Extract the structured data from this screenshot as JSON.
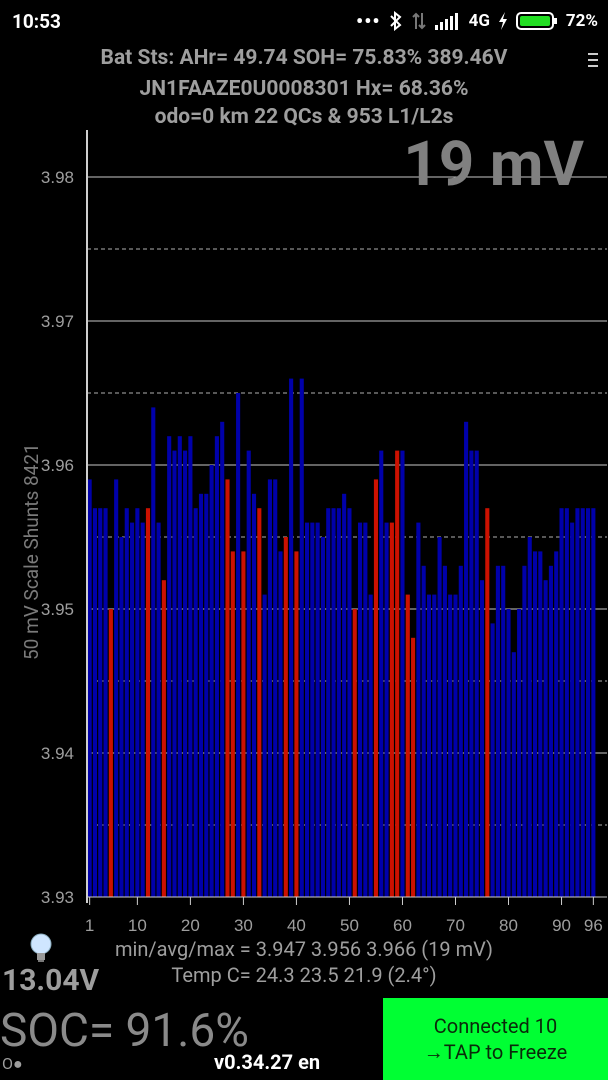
{
  "status_bar": {
    "time": "10:53",
    "network": "4G",
    "battery_percent": "72%"
  },
  "header": {
    "line1": "Bat Sts: AHr= 49.74 SOH= 75.83% 389.46V",
    "line2": "JN1FAAZE0U0008301    Hx= 68.36%",
    "line3": "odo=0 km  22 QCs & 953 L1/L2s"
  },
  "spread_label": "19 mV",
  "side_label": "50 mV Scale   Shunts 8421",
  "chart_data": {
    "type": "bar",
    "ylim": [
      3.93,
      3.98
    ],
    "yticks": [
      "3.93",
      "3.94",
      "3.95",
      "3.96",
      "3.97",
      "3.98"
    ],
    "xticks": [
      "1",
      "10",
      "20",
      "30",
      "40",
      "50",
      "60",
      "70",
      "80",
      "90",
      "96"
    ],
    "x_tick_values": [
      1,
      10,
      20,
      30,
      40,
      50,
      60,
      70,
      80,
      90,
      96
    ],
    "cells": [
      1,
      2,
      3,
      4,
      5,
      6,
      7,
      8,
      9,
      10,
      11,
      12,
      13,
      14,
      15,
      16,
      17,
      18,
      19,
      20,
      21,
      22,
      23,
      24,
      25,
      26,
      27,
      28,
      29,
      30,
      31,
      32,
      33,
      34,
      35,
      36,
      37,
      38,
      39,
      40,
      41,
      42,
      43,
      44,
      45,
      46,
      47,
      48,
      49,
      50,
      51,
      52,
      53,
      54,
      55,
      56,
      57,
      58,
      59,
      60,
      61,
      62,
      63,
      64,
      65,
      66,
      67,
      68,
      69,
      70,
      71,
      72,
      73,
      74,
      75,
      76,
      77,
      78,
      79,
      80,
      81,
      82,
      83,
      84,
      85,
      86,
      87,
      88,
      89,
      90,
      91,
      92,
      93,
      94,
      95,
      96
    ],
    "values": [
      3.959,
      3.957,
      3.957,
      3.957,
      3.95,
      3.959,
      3.955,
      3.957,
      3.956,
      3.957,
      3.956,
      3.957,
      3.964,
      3.956,
      3.952,
      3.962,
      3.961,
      3.962,
      3.961,
      3.962,
      3.957,
      3.958,
      3.958,
      3.96,
      3.962,
      3.963,
      3.959,
      3.954,
      3.965,
      3.954,
      3.961,
      3.958,
      3.957,
      3.951,
      3.959,
      3.959,
      3.954,
      3.955,
      3.966,
      3.954,
      3.966,
      3.956,
      3.956,
      3.956,
      3.955,
      3.957,
      3.957,
      3.957,
      3.958,
      3.957,
      3.95,
      3.956,
      3.956,
      3.951,
      3.959,
      3.961,
      3.956,
      3.956,
      3.961,
      3.961,
      3.951,
      3.948,
      3.956,
      3.953,
      3.951,
      3.951,
      3.955,
      3.953,
      3.951,
      3.951,
      3.953,
      3.963,
      3.961,
      3.961,
      3.952,
      3.957,
      3.949,
      3.953,
      3.953,
      3.95,
      3.947,
      3.95,
      3.953,
      3.955,
      3.954,
      3.954,
      3.952,
      3.953,
      3.954,
      3.957,
      3.957,
      3.956,
      3.957,
      3.957,
      3.957,
      3.957
    ],
    "shunted_cells": [
      5,
      12,
      15,
      27,
      28,
      30,
      33,
      38,
      40,
      51,
      55,
      58,
      59,
      61,
      62,
      76
    ],
    "colors": {
      "normal": "#0000aa",
      "shunted": "#cc1100"
    }
  },
  "stats": {
    "line1": "min/avg/max = 3.947  3.956  3.966  (19 mV)",
    "line2": "Temp C= 24.3  23.5  21.9  (2.4°)"
  },
  "pack_voltage": "13.04V",
  "soc": "SOC= 91.6%",
  "dots": "O●",
  "version": "v0.34.27 en",
  "connect_button": {
    "line1": "Connected 10",
    "line2": "→TAP to Freeze",
    "color": "#00ff33"
  }
}
